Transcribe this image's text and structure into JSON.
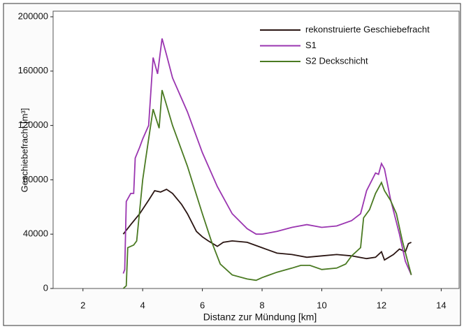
{
  "chart_data": {
    "type": "line",
    "x_label": "Distanz zur Mündung [km]",
    "y_label": "Geschiebefracht [m³]",
    "xlim": [
      1,
      14.6
    ],
    "xticks": [
      2,
      4,
      6,
      8,
      10,
      12,
      14
    ],
    "ylim": [
      0,
      200000
    ],
    "yticks": [
      0,
      40000,
      80000,
      120000,
      160000,
      200000
    ],
    "legend": "upper right",
    "series": [
      {
        "name": "rekonstruierte Geschiebefracht",
        "color": "#2a1512",
        "x": [
          3.35,
          3.6,
          3.9,
          4.2,
          4.4,
          4.6,
          4.8,
          5.0,
          5.3,
          5.5,
          5.8,
          6.0,
          6.2,
          6.5,
          6.7,
          7.0,
          7.5,
          8.0,
          8.5,
          9.0,
          9.5,
          10.0,
          10.5,
          11.0,
          11.5,
          11.8,
          12.0,
          12.1,
          12.4,
          12.6,
          12.8,
          12.9,
          13.0
        ],
        "values": [
          40000,
          47000,
          55000,
          65000,
          72000,
          71000,
          73000,
          70000,
          62000,
          55000,
          42000,
          38000,
          35000,
          31000,
          34000,
          35000,
          34000,
          30000,
          26000,
          25000,
          23000,
          24000,
          25000,
          24000,
          22000,
          23000,
          27000,
          21000,
          25000,
          29000,
          27000,
          33000,
          34000
        ]
      },
      {
        "name": "S1",
        "color": "#9a35b0",
        "x": [
          3.35,
          3.4,
          3.45,
          3.6,
          3.7,
          3.75,
          3.9,
          4.0,
          4.2,
          4.35,
          4.5,
          4.65,
          4.8,
          5.0,
          5.5,
          6.0,
          6.5,
          7.0,
          7.5,
          7.8,
          8.0,
          8.5,
          9.0,
          9.5,
          10.0,
          10.5,
          11.0,
          11.3,
          11.5,
          11.8,
          11.9,
          12.0,
          12.1,
          12.3,
          12.6,
          12.8,
          13.0
        ],
        "values": [
          11000,
          14000,
          64000,
          70000,
          70000,
          96000,
          104000,
          110000,
          120000,
          170000,
          158000,
          184000,
          172000,
          155000,
          130000,
          100000,
          75000,
          55000,
          44000,
          40000,
          40000,
          42000,
          45000,
          47000,
          45000,
          46000,
          50000,
          55000,
          72000,
          85000,
          84000,
          92000,
          88000,
          66000,
          40000,
          20000,
          10000
        ]
      },
      {
        "name": "S2 Deckschicht",
        "color": "#4a7a22",
        "x": [
          3.35,
          3.45,
          3.5,
          3.7,
          3.8,
          4.0,
          4.1,
          4.2,
          4.35,
          4.55,
          4.65,
          4.8,
          5.0,
          5.5,
          6.0,
          6.3,
          6.6,
          7.0,
          7.5,
          7.8,
          8.0,
          8.5,
          9.0,
          9.3,
          9.6,
          10.0,
          10.5,
          10.8,
          11.0,
          11.3,
          11.4,
          11.6,
          11.8,
          12.0,
          12.1,
          12.3,
          12.5,
          12.7,
          12.9,
          13.0
        ],
        "values": [
          0,
          2000,
          30000,
          32000,
          35000,
          80000,
          95000,
          110000,
          132000,
          118000,
          146000,
          135000,
          120000,
          90000,
          55000,
          35000,
          18000,
          10000,
          7000,
          6000,
          8000,
          12000,
          15000,
          17000,
          17000,
          14000,
          15000,
          18000,
          24000,
          30000,
          52000,
          58000,
          70000,
          78000,
          72000,
          65000,
          55000,
          35000,
          18000,
          10000
        ]
      }
    ]
  }
}
